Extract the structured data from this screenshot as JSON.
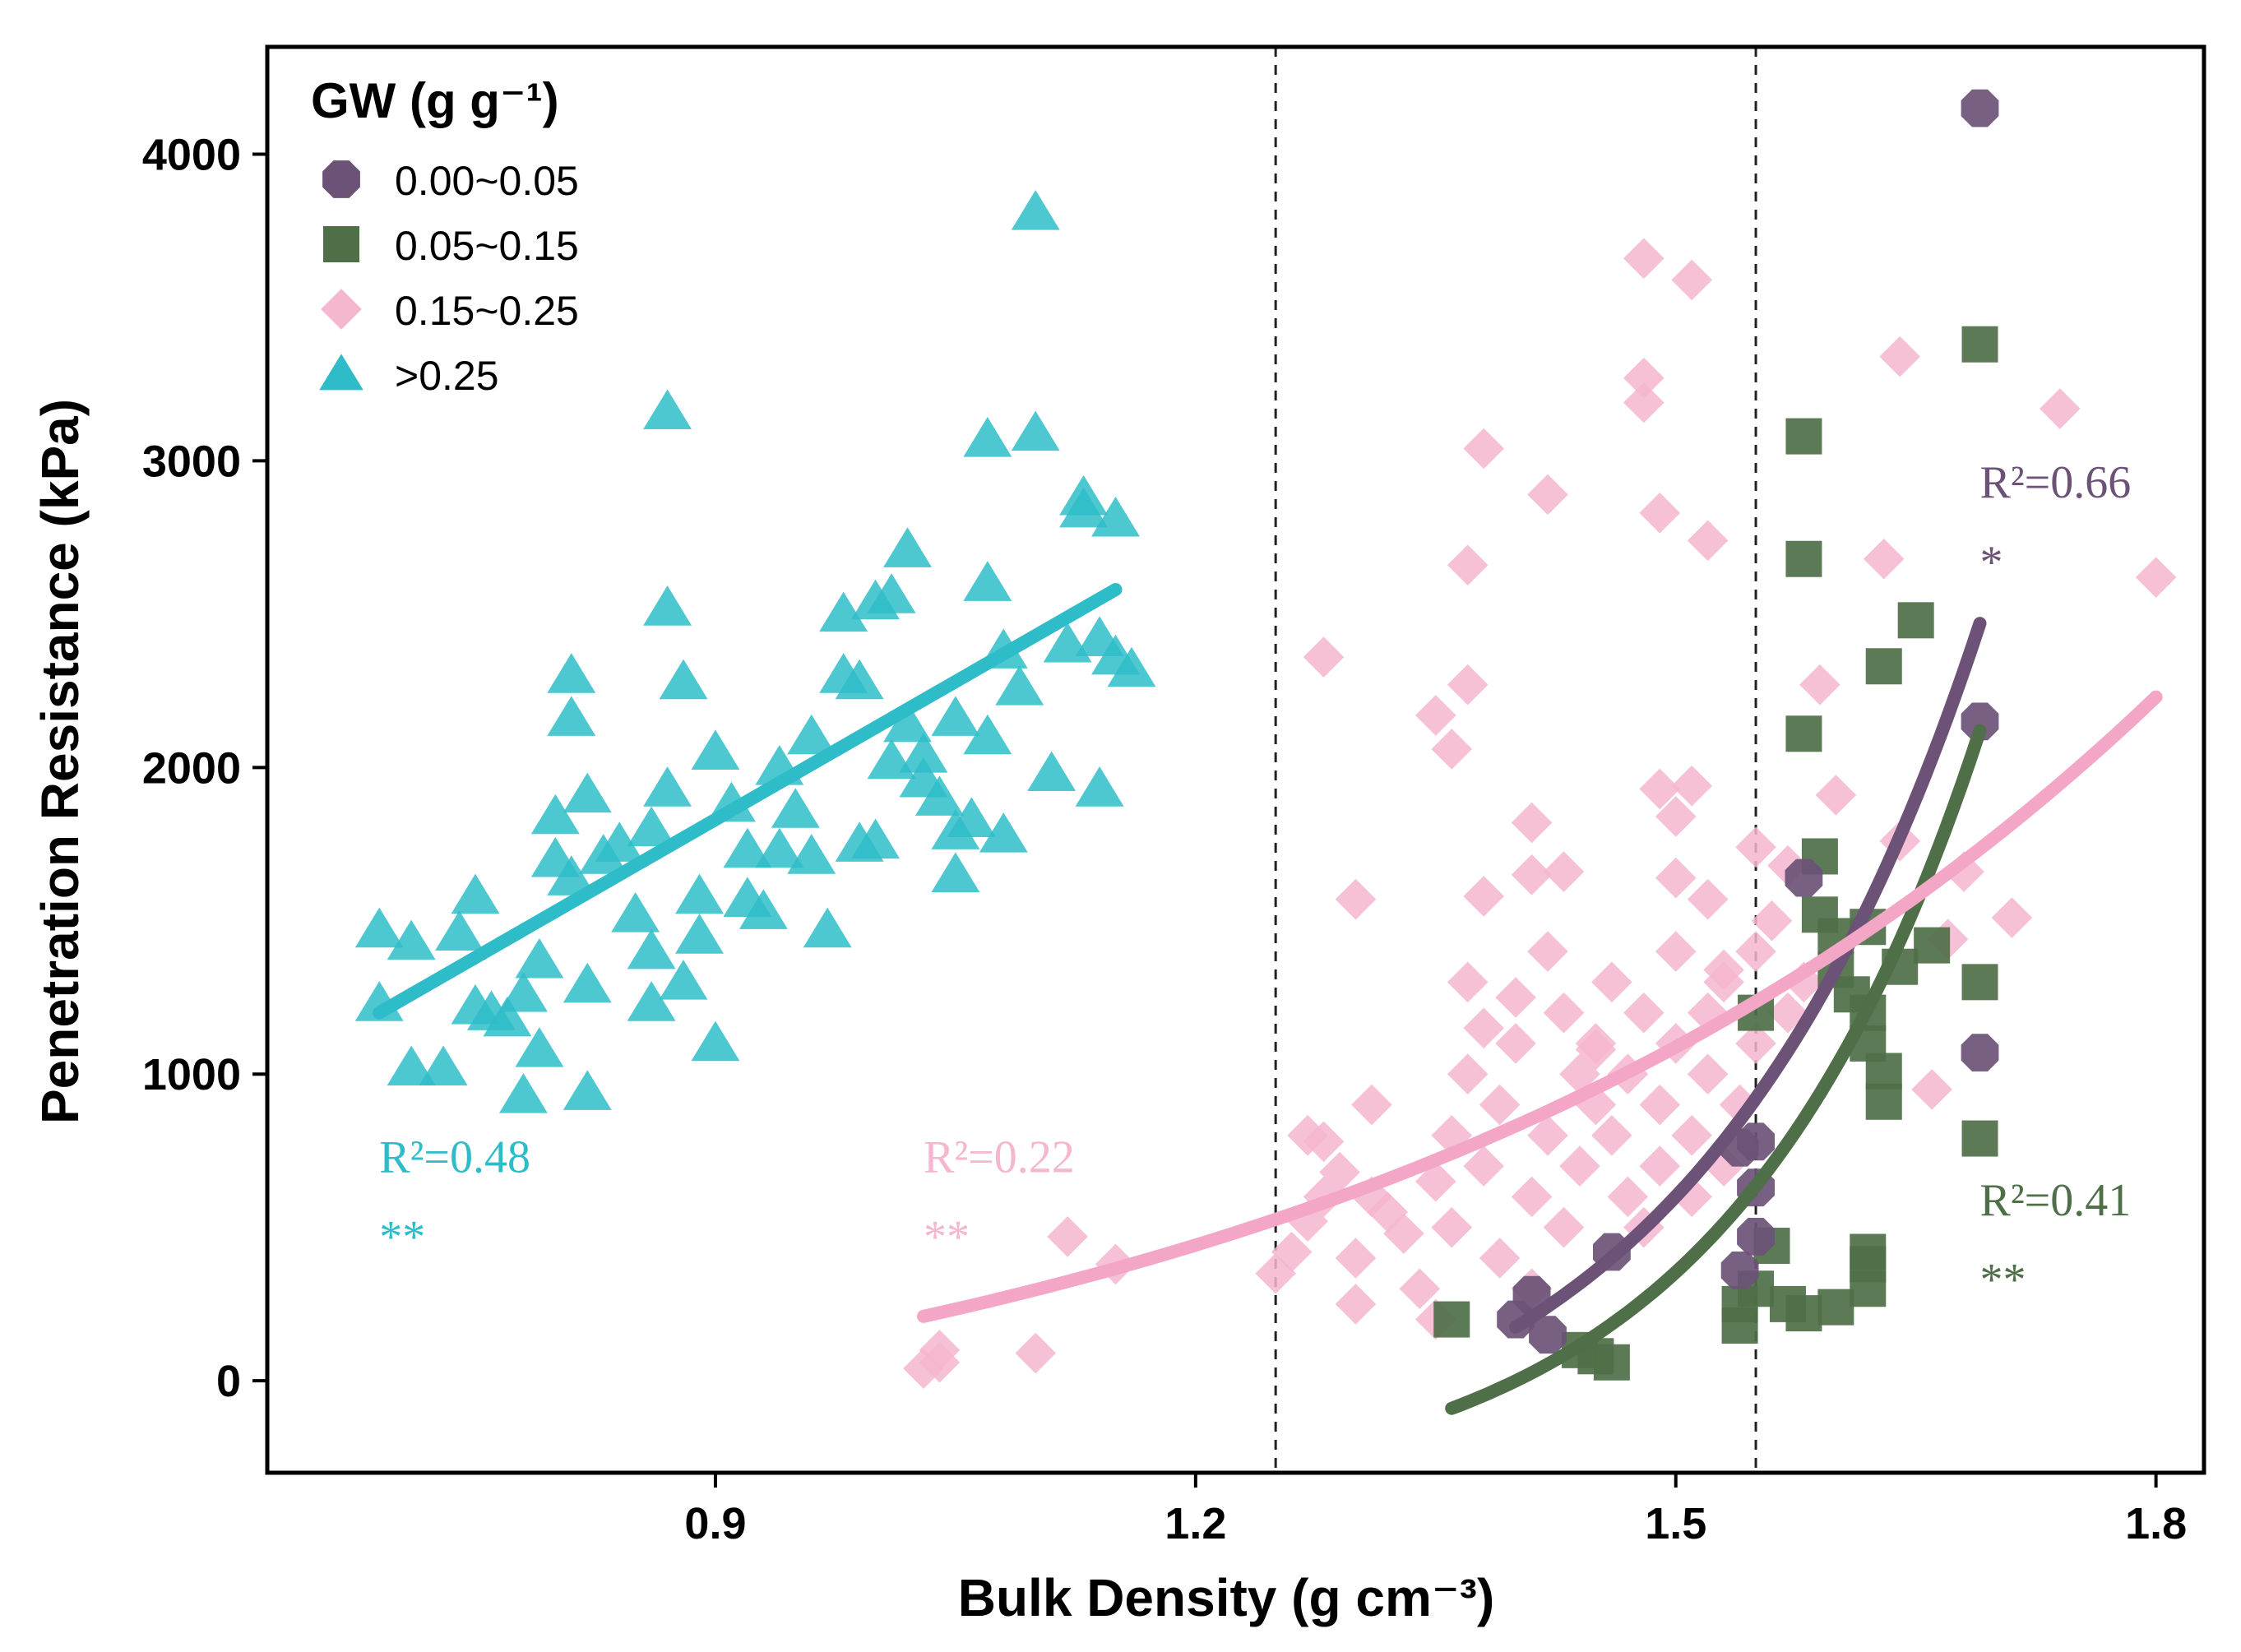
{
  "chart_data": {
    "type": "scatter",
    "xlabel": "Bulk Density (g cm⁻³)",
    "ylabel": "Penetration Resistance (kPa)",
    "xlim": [
      0.62,
      1.83
    ],
    "ylim": [
      -300,
      4350
    ],
    "x_ticks": [
      0.9,
      1.2,
      1.5,
      1.8
    ],
    "x_tick_labels": [
      "0.9",
      "1.2",
      "1.5",
      "1.8"
    ],
    "y_ticks": [
      0,
      1000,
      2000,
      3000,
      4000
    ],
    "y_tick_labels": [
      "0",
      "1000",
      "2000",
      "3000",
      "4000"
    ],
    "vlines": [
      1.25,
      1.55
    ],
    "legend": {
      "title": "GW (g g⁻¹)",
      "position": "top-left",
      "entries": [
        "0.00~0.05",
        "0.05~0.15",
        "0.15~0.25",
        ">0.25"
      ]
    },
    "colors": {
      "s1": "#6b5276",
      "s2": "#4f6f48",
      "s3": "#f5b6cf",
      "s4": "#2ebdc8",
      "s3_fit": "#f3a6c6"
    },
    "series": [
      {
        "name": "0.00~0.05",
        "marker": "circle",
        "points": [
          [
            1.41,
            280
          ],
          [
            1.4,
            200
          ],
          [
            1.42,
            150
          ],
          [
            1.46,
            420
          ],
          [
            1.54,
            360
          ],
          [
            1.54,
            760
          ],
          [
            1.55,
            780
          ],
          [
            1.55,
            630
          ],
          [
            1.55,
            470
          ],
          [
            1.58,
            1640
          ],
          [
            1.69,
            4150
          ],
          [
            1.69,
            2150
          ],
          [
            1.69,
            1070
          ]
        ],
        "fit": {
          "x": [
            1.4,
            1.69
          ],
          "kind": "exp",
          "y": [
            175,
            2470
          ]
        },
        "annotation": {
          "r2": "R²=0.66",
          "sig": "*",
          "at_x": 1.69,
          "at_y_r2": 2880,
          "at_y_sig": 2620
        }
      },
      {
        "name": "0.05~0.15",
        "marker": "square",
        "points": [
          [
            1.36,
            200
          ],
          [
            1.44,
            100
          ],
          [
            1.45,
            80
          ],
          [
            1.46,
            60
          ],
          [
            1.54,
            180
          ],
          [
            1.54,
            250
          ],
          [
            1.55,
            1200
          ],
          [
            1.55,
            300
          ],
          [
            1.58,
            3080
          ],
          [
            1.58,
            2680
          ],
          [
            1.58,
            2110
          ],
          [
            1.59,
            1710
          ],
          [
            1.59,
            1520
          ],
          [
            1.6,
            1450
          ],
          [
            1.6,
            1340
          ],
          [
            1.61,
            1260
          ],
          [
            1.62,
            1200
          ],
          [
            1.62,
            1100
          ],
          [
            1.63,
            910
          ],
          [
            1.63,
            1010
          ],
          [
            1.62,
            1480
          ],
          [
            1.64,
            1350
          ],
          [
            1.66,
            1420
          ],
          [
            1.63,
            2330
          ],
          [
            1.65,
            2480
          ],
          [
            1.56,
            440
          ],
          [
            1.57,
            250
          ],
          [
            1.58,
            220
          ],
          [
            1.6,
            240
          ],
          [
            1.62,
            300
          ],
          [
            1.62,
            420
          ],
          [
            1.62,
            380
          ],
          [
            1.69,
            3380
          ],
          [
            1.69,
            1300
          ],
          [
            1.69,
            790
          ]
        ],
        "fit": {
          "x": [
            1.36,
            1.69
          ],
          "kind": "exp",
          "y": [
            -90,
            2120
          ]
        },
        "annotation": {
          "r2": "R²=0.41",
          "sig": "**",
          "at_x": 1.69,
          "at_y_r2": 540,
          "at_y_sig": 280
        }
      },
      {
        "name": "0.15~0.25",
        "marker": "diamond",
        "points": [
          [
            1.04,
            60
          ],
          [
            1.03,
            40
          ],
          [
            1.04,
            100
          ],
          [
            1.1,
            90
          ],
          [
            1.12,
            470
          ],
          [
            1.15,
            380
          ],
          [
            1.25,
            350
          ],
          [
            1.26,
            420
          ],
          [
            1.27,
            520
          ],
          [
            1.27,
            800
          ],
          [
            1.28,
            780
          ],
          [
            1.28,
            600
          ],
          [
            1.29,
            680
          ],
          [
            1.3,
            400
          ],
          [
            1.3,
            250
          ],
          [
            1.31,
            600
          ],
          [
            1.31,
            900
          ],
          [
            1.32,
            550
          ],
          [
            1.33,
            480
          ],
          [
            1.34,
            300
          ],
          [
            1.35,
            200
          ],
          [
            1.35,
            650
          ],
          [
            1.36,
            500
          ],
          [
            1.36,
            800
          ],
          [
            1.37,
            1000
          ],
          [
            1.37,
            1300
          ],
          [
            1.38,
            1150
          ],
          [
            1.38,
            700
          ],
          [
            1.39,
            400
          ],
          [
            1.39,
            900
          ],
          [
            1.4,
            1250
          ],
          [
            1.4,
            1100
          ],
          [
            1.41,
            600
          ],
          [
            1.41,
            300
          ],
          [
            1.42,
            800
          ],
          [
            1.42,
            1400
          ],
          [
            1.43,
            1200
          ],
          [
            1.43,
            500
          ],
          [
            1.44,
            1000
          ],
          [
            1.44,
            700
          ],
          [
            1.45,
            900
          ],
          [
            1.45,
            1100
          ],
          [
            1.46,
            1300
          ],
          [
            1.46,
            800
          ],
          [
            1.47,
            600
          ],
          [
            1.47,
            1000
          ],
          [
            1.48,
            1200
          ],
          [
            1.48,
            500
          ],
          [
            1.49,
            700
          ],
          [
            1.49,
            900
          ],
          [
            1.5,
            1100
          ],
          [
            1.5,
            1400
          ],
          [
            1.51,
            800
          ],
          [
            1.51,
            600
          ],
          [
            1.52,
            1000
          ],
          [
            1.52,
            1200
          ],
          [
            1.53,
            700
          ],
          [
            1.53,
            1300
          ],
          [
            1.54,
            900
          ],
          [
            1.55,
            1400
          ],
          [
            1.55,
            1100
          ],
          [
            1.56,
            1500
          ],
          [
            1.57,
            1200
          ],
          [
            1.58,
            1300
          ],
          [
            1.3,
            1570
          ],
          [
            1.28,
            2360
          ],
          [
            1.35,
            2170
          ],
          [
            1.36,
            2060
          ],
          [
            1.37,
            2660
          ],
          [
            1.37,
            2270
          ],
          [
            1.38,
            3040
          ],
          [
            1.42,
            2890
          ],
          [
            1.48,
            3660
          ],
          [
            1.48,
            3270
          ],
          [
            1.48,
            3190
          ],
          [
            1.49,
            2830
          ],
          [
            1.51,
            3590
          ],
          [
            1.52,
            2740
          ],
          [
            1.49,
            1930
          ],
          [
            1.51,
            1940
          ],
          [
            1.5,
            1840
          ],
          [
            1.5,
            1640
          ],
          [
            1.52,
            1570
          ],
          [
            1.55,
            1740
          ],
          [
            1.57,
            1680
          ],
          [
            1.59,
            2270
          ],
          [
            1.6,
            1910
          ],
          [
            1.63,
            2680
          ],
          [
            1.64,
            3340
          ],
          [
            1.74,
            3170
          ],
          [
            1.8,
            2620
          ],
          [
            1.64,
            1760
          ],
          [
            1.68,
            1660
          ],
          [
            1.71,
            1510
          ],
          [
            1.66,
            950
          ],
          [
            1.67,
            1440
          ],
          [
            1.53,
            1340
          ],
          [
            1.41,
            1650
          ],
          [
            1.41,
            1820
          ],
          [
            1.45,
            1080
          ],
          [
            1.38,
            1580
          ],
          [
            1.43,
            1660
          ]
        ],
        "fit": {
          "x": [
            1.03,
            1.8
          ],
          "kind": "exp",
          "y": [
            210,
            2230
          ]
        },
        "annotation": {
          "r2": "R²=0.22",
          "sig": "**",
          "at_x": 1.03,
          "at_y_r2": 680,
          "at_y_sig": 420
        }
      },
      {
        "name": ">0.25",
        "marker": "triangle",
        "points": [
          [
            0.69,
            1470
          ],
          [
            0.69,
            1230
          ],
          [
            0.71,
            1430
          ],
          [
            0.71,
            1020
          ],
          [
            0.73,
            1020
          ],
          [
            0.74,
            1460
          ],
          [
            0.75,
            1580
          ],
          [
            0.75,
            1220
          ],
          [
            0.76,
            1200
          ],
          [
            0.77,
            1180
          ],
          [
            0.78,
            930
          ],
          [
            0.78,
            1260
          ],
          [
            0.79,
            1080
          ],
          [
            0.79,
            1370
          ],
          [
            0.8,
            1700
          ],
          [
            0.8,
            1840
          ],
          [
            0.81,
            2160
          ],
          [
            0.81,
            2300
          ],
          [
            0.81,
            1640
          ],
          [
            0.82,
            1290
          ],
          [
            0.82,
            1910
          ],
          [
            0.82,
            940
          ],
          [
            0.83,
            1710
          ],
          [
            0.84,
            1750
          ],
          [
            0.85,
            1520
          ],
          [
            0.86,
            1230
          ],
          [
            0.86,
            1400
          ],
          [
            0.86,
            1800
          ],
          [
            0.87,
            1930
          ],
          [
            0.87,
            3160
          ],
          [
            0.87,
            2520
          ],
          [
            0.88,
            2280
          ],
          [
            0.88,
            1300
          ],
          [
            0.89,
            1450
          ],
          [
            0.89,
            1580
          ],
          [
            0.9,
            1100
          ],
          [
            0.9,
            2050
          ],
          [
            0.91,
            1880
          ],
          [
            0.92,
            1570
          ],
          [
            0.92,
            1730
          ],
          [
            0.93,
            1530
          ],
          [
            0.94,
            2000
          ],
          [
            0.94,
            1730
          ],
          [
            0.95,
            1860
          ],
          [
            0.96,
            1710
          ],
          [
            0.96,
            2100
          ],
          [
            0.97,
            1470
          ],
          [
            0.98,
            2300
          ],
          [
            0.98,
            2500
          ],
          [
            0.99,
            2280
          ],
          [
            0.99,
            1750
          ],
          [
            1.0,
            2540
          ],
          [
            1.0,
            1760
          ],
          [
            1.01,
            2560
          ],
          [
            1.01,
            2020
          ],
          [
            1.02,
            2710
          ],
          [
            1.02,
            2140
          ],
          [
            1.03,
            2040
          ],
          [
            1.03,
            1960
          ],
          [
            1.04,
            1900
          ],
          [
            1.05,
            2160
          ],
          [
            1.05,
            1790
          ],
          [
            1.05,
            1650
          ],
          [
            1.06,
            1830
          ],
          [
            1.07,
            2600
          ],
          [
            1.07,
            2100
          ],
          [
            1.07,
            3070
          ],
          [
            1.08,
            2380
          ],
          [
            1.08,
            1780
          ],
          [
            1.09,
            2260
          ],
          [
            1.1,
            3090
          ],
          [
            1.1,
            3810
          ],
          [
            1.11,
            1980
          ],
          [
            1.12,
            2400
          ],
          [
            1.13,
            2880
          ],
          [
            1.13,
            2840
          ],
          [
            1.14,
            2420
          ],
          [
            1.14,
            1930
          ],
          [
            1.15,
            2810
          ],
          [
            1.15,
            2360
          ],
          [
            1.16,
            2320
          ]
        ],
        "fit": {
          "x": [
            0.69,
            1.15
          ],
          "kind": "linear",
          "y": [
            1200,
            2580
          ]
        },
        "annotation": {
          "r2": "R²=0.48",
          "sig": "**",
          "at_x": 0.69,
          "at_y_r2": 680,
          "at_y_sig": 420
        }
      }
    ]
  }
}
